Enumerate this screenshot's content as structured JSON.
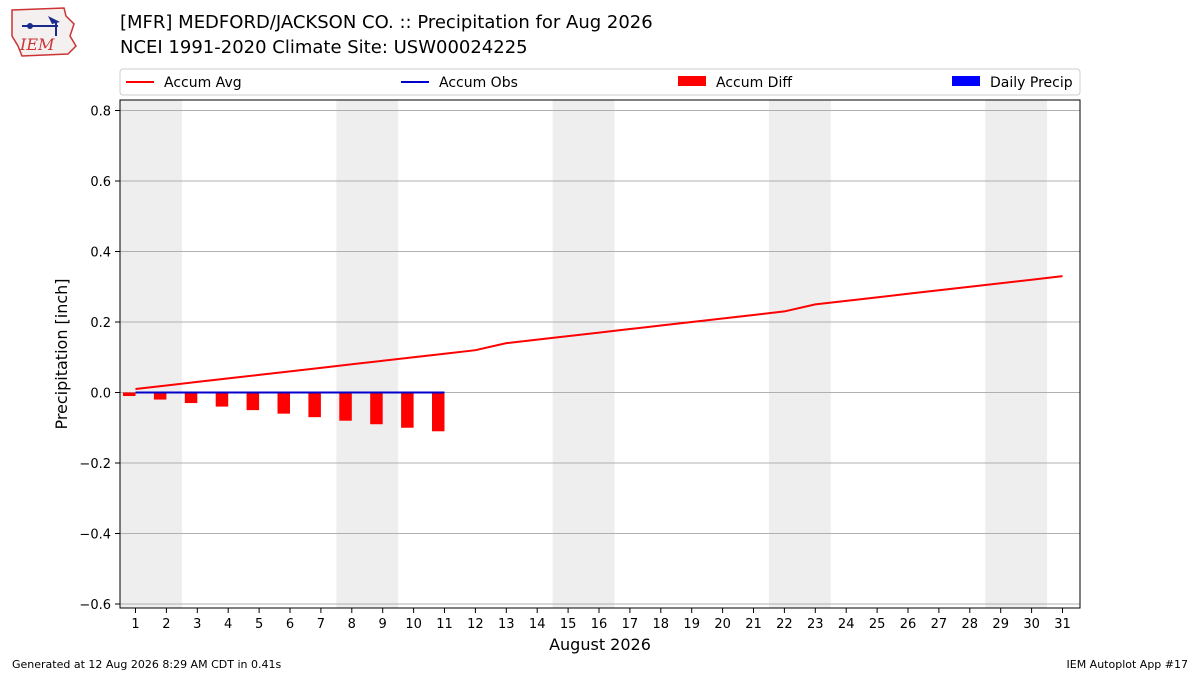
{
  "header": {
    "logo_text": "IEM",
    "title": "[MFR] MEDFORD/JACKSON CO. :: Precipitation for Aug 2026",
    "subtitle": "NCEI 1991-2020 Climate Site: USW00024225"
  },
  "footer": {
    "generated": "Generated at 12 Aug 2026 8:29 AM CDT in 0.41s",
    "app": "IEM Autoplot App #17"
  },
  "colors": {
    "accum_avg": "#ff0000",
    "accum_obs": "#0000cc",
    "accum_diff": "#ff0000",
    "daily_precip": "#0000ff",
    "weekend_band": "#eeeeee",
    "grid": "#b0b0b0"
  },
  "chart_data": {
    "type": "line",
    "xlabel": "August 2026",
    "ylabel": "Precipitation [inch]",
    "ylim": [
      -0.6,
      0.8
    ],
    "yticks": [
      0.8,
      0.6,
      0.4,
      0.2,
      0.0,
      -0.2,
      -0.4,
      -0.6
    ],
    "ytick_labels": [
      "0.8",
      "0.6",
      "0.4",
      "0.2",
      "0.0",
      "−0.2",
      "−0.4",
      "−0.6"
    ],
    "x": [
      1,
      2,
      3,
      4,
      5,
      6,
      7,
      8,
      9,
      10,
      11,
      12,
      13,
      14,
      15,
      16,
      17,
      18,
      19,
      20,
      21,
      22,
      23,
      24,
      25,
      26,
      27,
      28,
      29,
      30,
      31
    ],
    "legend": [
      "Accum Avg",
      "Accum Obs",
      "Accum Diff",
      "Daily Precip"
    ],
    "legend_position": "top",
    "grid": true,
    "weekend_shading": [
      [
        1,
        2
      ],
      [
        8,
        9
      ],
      [
        15,
        16
      ],
      [
        22,
        23
      ],
      [
        29,
        30
      ]
    ],
    "series": [
      {
        "name": "Accum Avg",
        "kind": "line",
        "x": [
          1,
          2,
          3,
          4,
          5,
          6,
          7,
          8,
          9,
          10,
          11,
          12,
          13,
          14,
          15,
          16,
          17,
          18,
          19,
          20,
          21,
          22,
          23,
          24,
          25,
          26,
          27,
          28,
          29,
          30,
          31
        ],
        "values": [
          0.01,
          0.02,
          0.03,
          0.04,
          0.05,
          0.06,
          0.07,
          0.08,
          0.09,
          0.1,
          0.11,
          0.12,
          0.14,
          0.15,
          0.16,
          0.17,
          0.18,
          0.19,
          0.2,
          0.21,
          0.22,
          0.23,
          0.25,
          0.26,
          0.27,
          0.28,
          0.29,
          0.3,
          0.31,
          0.32,
          0.33
        ]
      },
      {
        "name": "Accum Obs",
        "kind": "line",
        "x": [
          1,
          2,
          3,
          4,
          5,
          6,
          7,
          8,
          9,
          10,
          11
        ],
        "values": [
          0,
          0,
          0,
          0,
          0,
          0,
          0,
          0,
          0,
          0,
          0
        ]
      },
      {
        "name": "Accum Diff",
        "kind": "bar",
        "x": [
          1,
          2,
          3,
          4,
          5,
          6,
          7,
          8,
          9,
          10,
          11
        ],
        "values": [
          -0.01,
          -0.02,
          -0.03,
          -0.04,
          -0.05,
          -0.06,
          -0.07,
          -0.08,
          -0.09,
          -0.1,
          -0.11
        ]
      },
      {
        "name": "Daily Precip",
        "kind": "bar",
        "x": [
          1,
          2,
          3,
          4,
          5,
          6,
          7,
          8,
          9,
          10,
          11
        ],
        "values": [
          0,
          0,
          0,
          0,
          0,
          0,
          0,
          0,
          0,
          0,
          0
        ]
      }
    ]
  }
}
